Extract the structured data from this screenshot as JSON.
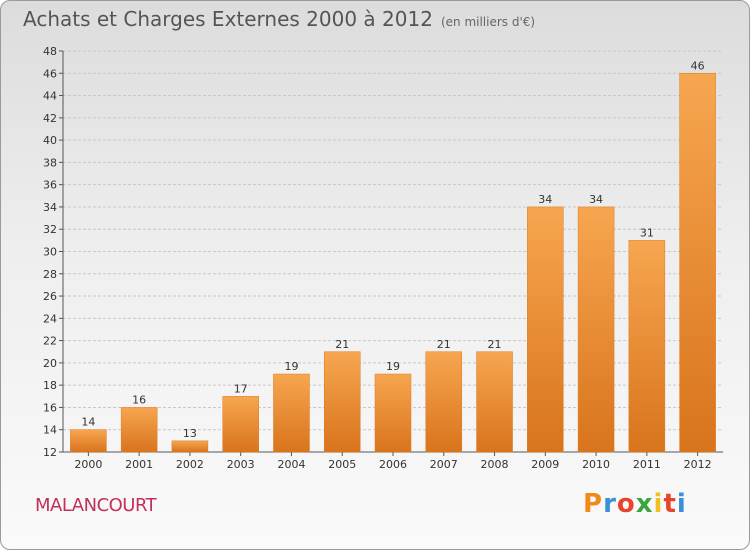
{
  "header": {
    "title": "Achats et Charges Externes 2000 à 2012",
    "subtitle": "(en milliers d'€)"
  },
  "commune": "MALANCOURT",
  "brand": {
    "letters": [
      "P",
      "r",
      "o",
      "x",
      "i",
      "t",
      "i"
    ],
    "colors": [
      "#f08a1c",
      "#3a8fd6",
      "#e8432b",
      "#3aa53a",
      "#f0c020",
      "#e8432b",
      "#3a8fd6"
    ]
  },
  "chart_data": {
    "type": "bar",
    "title": "Achats et Charges Externes 2000 à 2012",
    "subtitle": "(en milliers d'€)",
    "xlabel": "",
    "ylabel": "",
    "categories": [
      "2000",
      "2001",
      "2002",
      "2003",
      "2004",
      "2005",
      "2006",
      "2007",
      "2008",
      "2009",
      "2010",
      "2011",
      "2012"
    ],
    "values": [
      14,
      16,
      13,
      17,
      19,
      21,
      19,
      21,
      21,
      34,
      34,
      31,
      46
    ],
    "data_labels": [
      "14",
      "16",
      "13",
      "17",
      "19",
      "21",
      "19",
      "21",
      "21",
      "34",
      "34",
      "31",
      "46"
    ],
    "ylim": [
      12,
      48
    ],
    "yticks": [
      12,
      14,
      16,
      18,
      20,
      22,
      24,
      26,
      28,
      30,
      32,
      34,
      36,
      38,
      40,
      42,
      44,
      46,
      48
    ],
    "grid": true,
    "legend": "none",
    "bar_color": "#f0852a"
  }
}
